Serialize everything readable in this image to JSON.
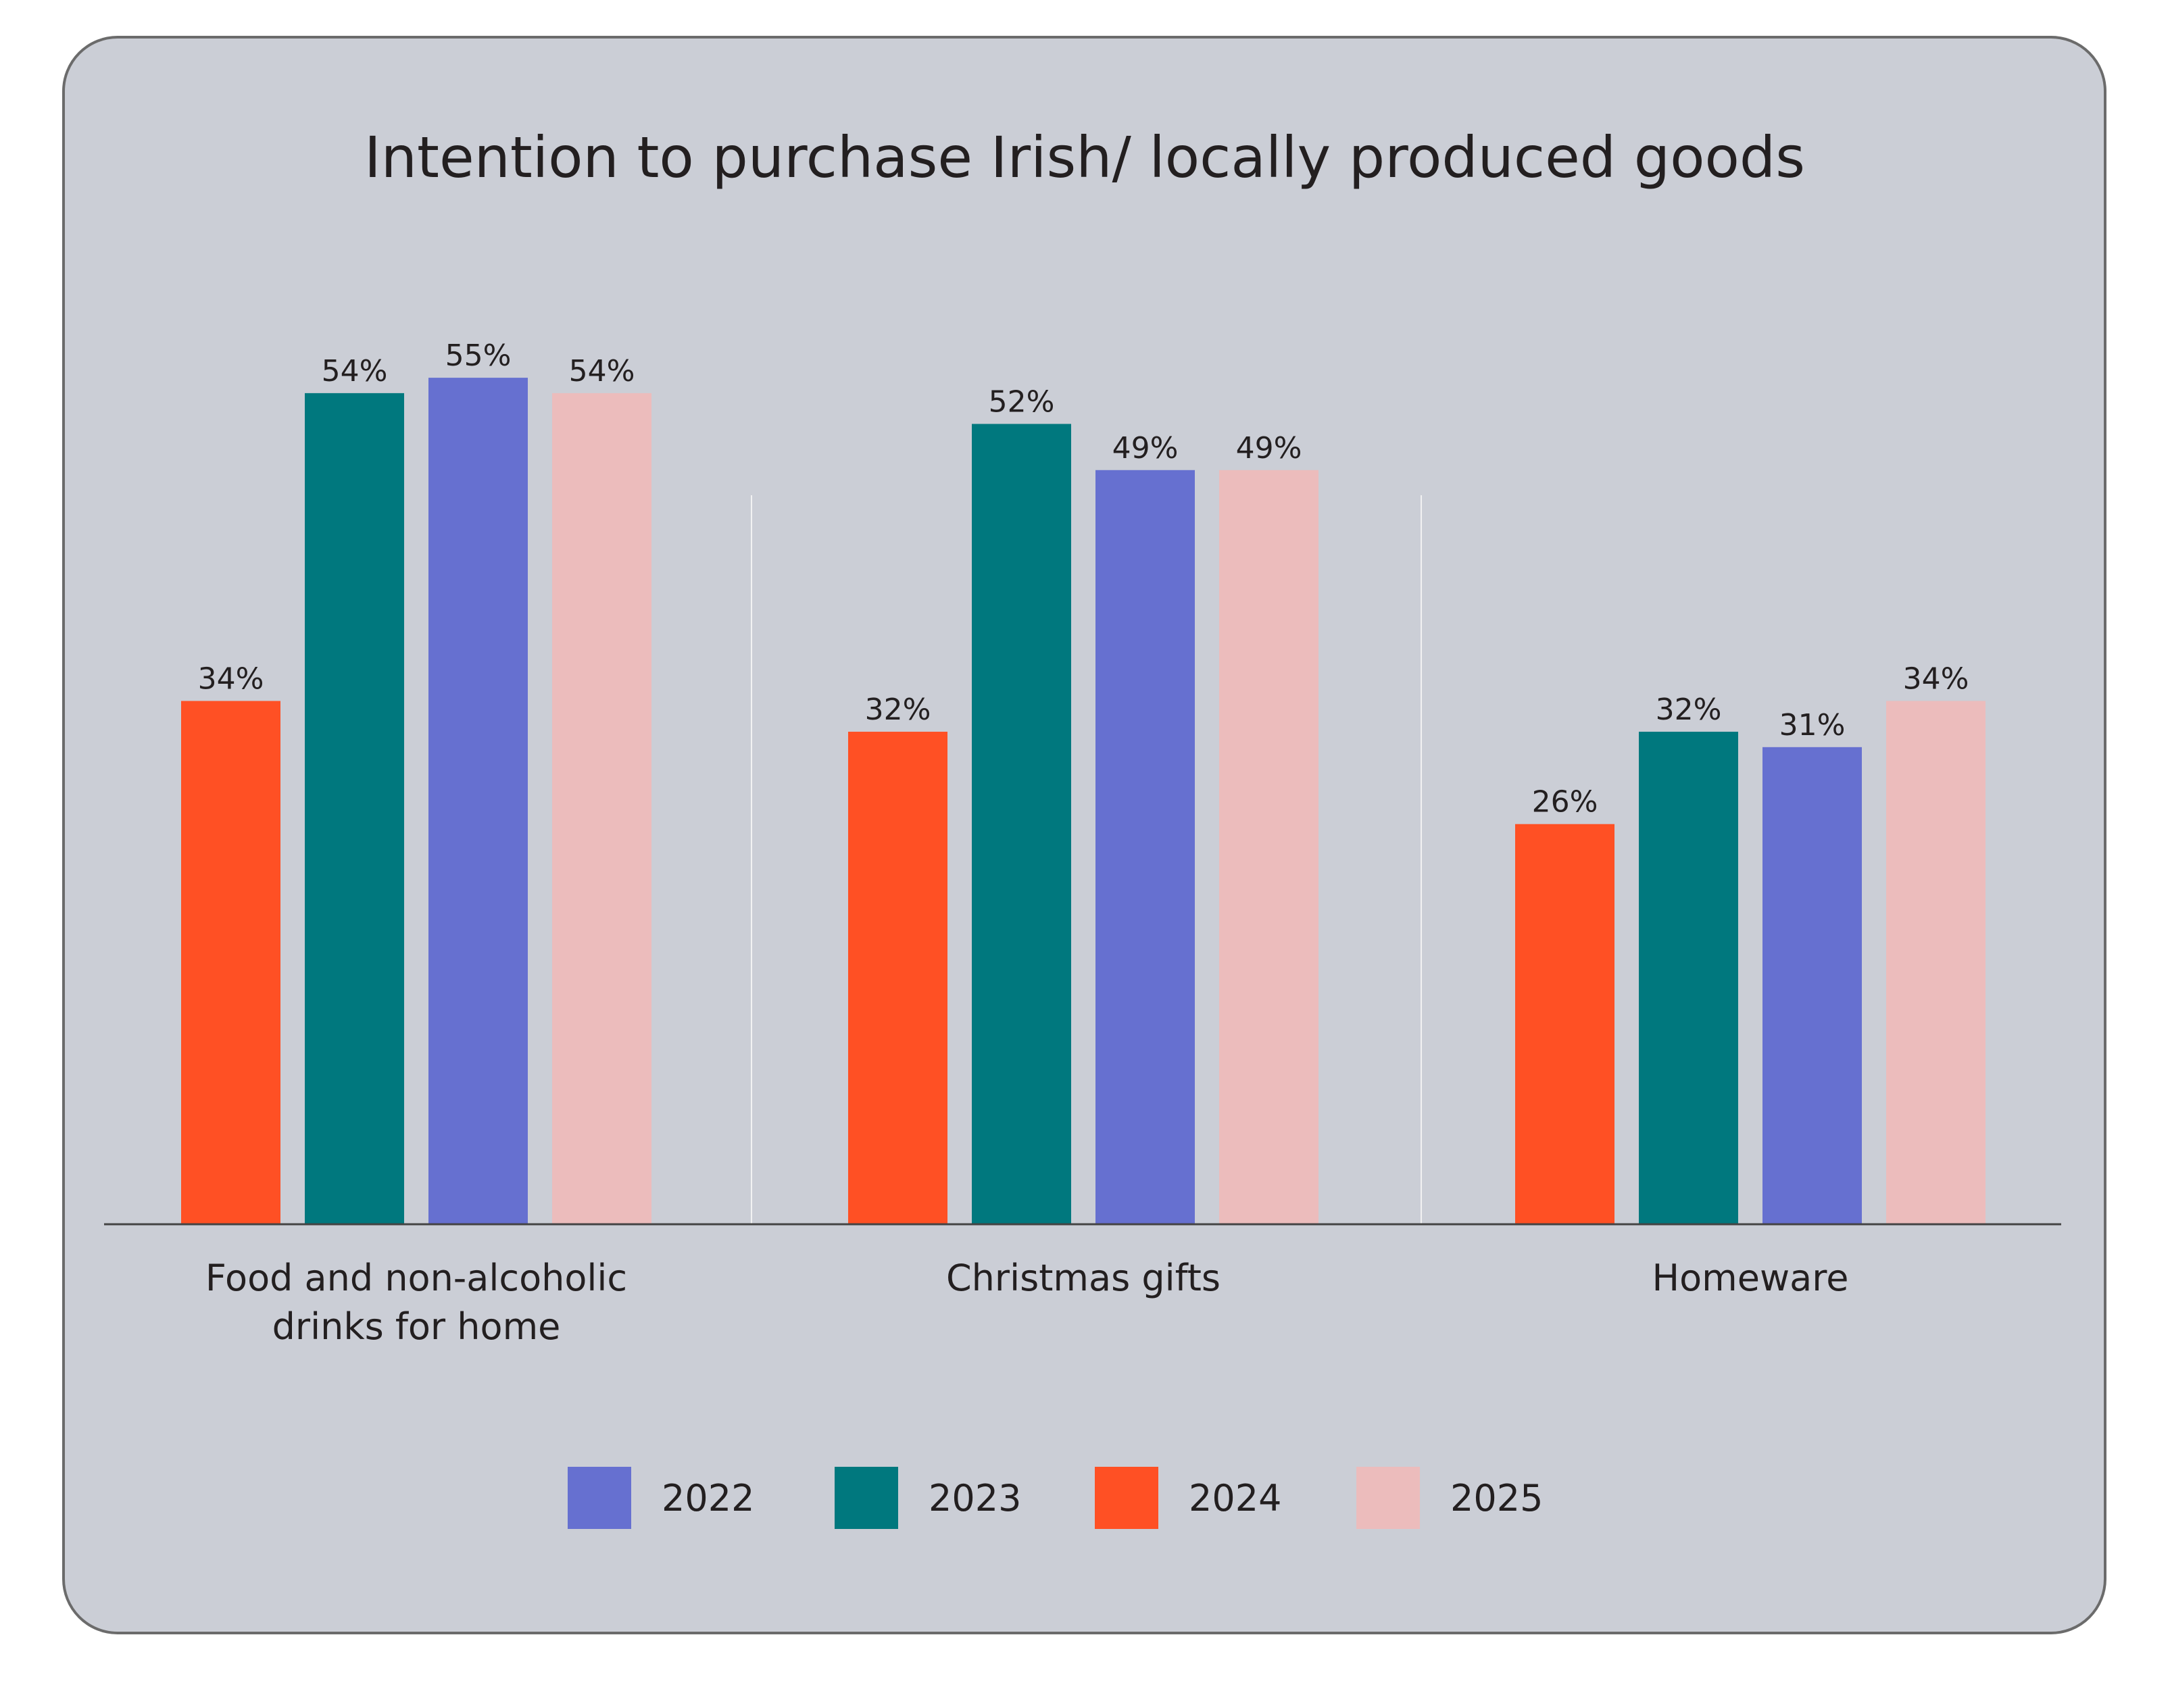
{
  "chart_data": {
    "type": "bar",
    "title": "Intention to purchase Irish/ locally produced goods",
    "xlabel": "",
    "ylabel": "",
    "ylim": [
      0,
      60
    ],
    "grid": false,
    "legend_position": "bottom",
    "categories": [
      "Food and non-alcoholic drinks for home",
      "Christmas gifts",
      "Homeware"
    ],
    "category_lines": [
      [
        "Food and non-alcoholic",
        "drinks for home"
      ],
      [
        "Christmas gifts"
      ],
      [
        "Homeware"
      ]
    ],
    "series": [
      {
        "name": "2022",
        "color": "#6670D0",
        "values": [
          55,
          49,
          31
        ]
      },
      {
        "name": "2023",
        "color": "#00787E",
        "values": [
          54,
          52,
          32
        ]
      },
      {
        "name": "2024",
        "color": "#FF5024",
        "values": [
          34,
          32,
          26
        ]
      },
      {
        "name": "2025",
        "color": "#ECBCBC",
        "values": [
          54,
          49,
          34
        ]
      }
    ],
    "bar_order": [
      "2024",
      "2023",
      "2022",
      "2025"
    ],
    "value_suffix": "%"
  },
  "colors": {
    "panel": "#CBCED6",
    "panel_border": "#6B6B6B",
    "text": "#231F20"
  }
}
